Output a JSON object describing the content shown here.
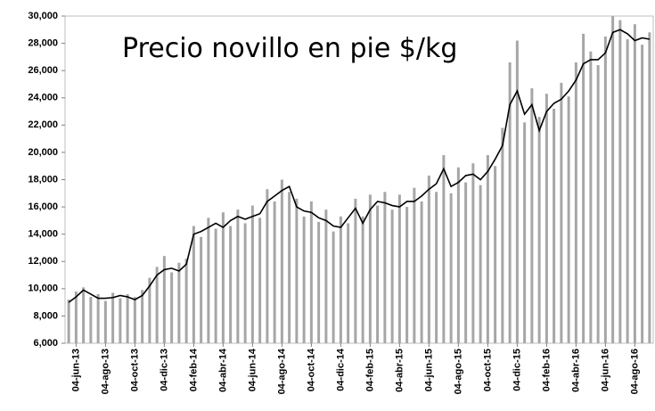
{
  "chart_data": {
    "type": "bar",
    "annotation": "Precio novillo en pie $/kg",
    "categories": [
      null,
      "04-jun-13",
      null,
      null,
      null,
      "04-ago-13",
      null,
      null,
      null,
      "04-oct-13",
      null,
      null,
      null,
      "04-dic-13",
      null,
      null,
      null,
      "04-feb-14",
      null,
      null,
      null,
      "04-abr-14",
      null,
      null,
      null,
      "04-jun-14",
      null,
      null,
      null,
      "04-ago-14",
      null,
      null,
      null,
      "04-oct-14",
      null,
      null,
      null,
      "04-dic-14",
      null,
      null,
      null,
      "04-feb-15",
      null,
      null,
      null,
      "04-abr-15",
      null,
      null,
      null,
      "04-jun-15",
      null,
      null,
      null,
      "04-ago-15",
      null,
      null,
      null,
      "04-oct-15",
      null,
      null,
      null,
      "04-dic-15",
      null,
      null,
      null,
      "04-feb-16",
      null,
      null,
      null,
      "04-abr-16",
      null,
      null,
      null,
      "04-jun-16",
      null,
      null,
      null,
      "04-ago-16",
      null,
      null
    ],
    "series": [
      {
        "type": "bar",
        "color": "#a6a6a6",
        "values": [
          9200,
          9800,
          10100,
          9400,
          9600,
          9100,
          9700,
          9300,
          9600,
          9400,
          9900,
          10800,
          11600,
          12400,
          11200,
          11900,
          12200,
          14600,
          13800,
          15200,
          14400,
          15600,
          14600,
          15800,
          14800,
          16100,
          15200,
          17300,
          16400,
          18000,
          17100,
          16600,
          15300,
          16400,
          14900,
          15800,
          14200,
          15300,
          14800,
          16600,
          15300,
          16900,
          16100,
          17100,
          15800,
          16900,
          16000,
          17400,
          16400,
          18300,
          17100,
          19800,
          17000,
          18900,
          17800,
          19200,
          17600,
          19800,
          19000,
          21800,
          26600,
          28200,
          22200,
          24700,
          22600,
          24300,
          23200,
          25100,
          24100,
          26600,
          28700,
          27400,
          26400,
          28500,
          30000,
          29700,
          28300,
          29400,
          27900,
          28800
        ]
      },
      {
        "type": "line",
        "color": "#000000",
        "values": [
          9000,
          9400,
          9900,
          9600,
          9300,
          9300,
          9350,
          9500,
          9400,
          9200,
          9500,
          10200,
          11000,
          11400,
          11500,
          11300,
          11800,
          14000,
          14200,
          14500,
          14800,
          14500,
          15000,
          15300,
          15100,
          15300,
          15500,
          16400,
          16800,
          17200,
          17500,
          16000,
          15700,
          15600,
          15200,
          15000,
          14600,
          14500,
          15200,
          15900,
          14800,
          15800,
          16400,
          16300,
          16100,
          16000,
          16400,
          16400,
          16800,
          17300,
          17700,
          18800,
          17500,
          17800,
          18300,
          18400,
          18000,
          18600,
          19500,
          20500,
          23500,
          24500,
          22800,
          23500,
          21600,
          23000,
          23600,
          23900,
          24500,
          25300,
          26500,
          26800,
          26800,
          27300,
          28800,
          29000,
          28700,
          28200,
          28400,
          28300
        ]
      }
    ],
    "ylim": [
      6000,
      30000
    ],
    "yticks": [
      {
        "value": 6000,
        "label": "6,000"
      },
      {
        "value": 8000,
        "label": "8,000"
      },
      {
        "value": 10000,
        "label": "10,000"
      },
      {
        "value": 12000,
        "label": "12,000"
      },
      {
        "value": 14000,
        "label": "14,000"
      },
      {
        "value": 16000,
        "label": "16,000"
      },
      {
        "value": 18000,
        "label": "18,000"
      },
      {
        "value": 20000,
        "label": "20,000"
      },
      {
        "value": 22000,
        "label": "22,000"
      },
      {
        "value": 24000,
        "label": "24,000"
      },
      {
        "value": 26000,
        "label": "26,000"
      },
      {
        "value": 28000,
        "label": "28,000"
      },
      {
        "value": 30000,
        "label": "30,000"
      }
    ],
    "grid": false
  }
}
